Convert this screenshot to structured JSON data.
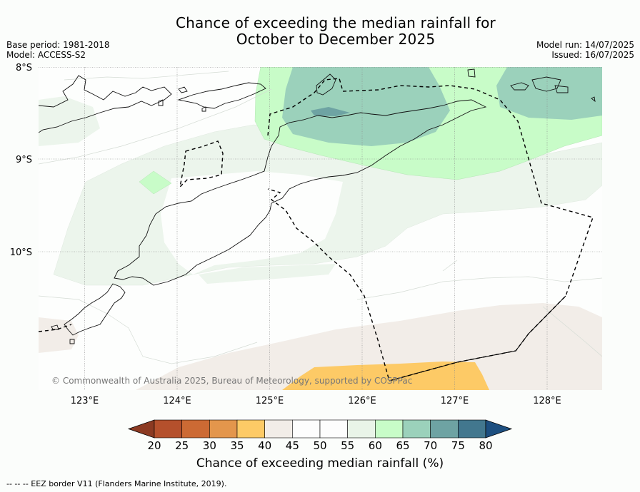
{
  "title": {
    "line1": "Chance of exceeding the median rainfall for",
    "line2": "October to December 2025"
  },
  "meta": {
    "base_period": "Base period: 1981-2018",
    "model": "Model: ACCESS-S2",
    "model_run": "Model run: 14/07/2025",
    "issued": "Issued: 16/07/2025"
  },
  "axes": {
    "lat_labels": [
      "8°S",
      "9°S",
      "10°S"
    ],
    "lat_values": [
      -8,
      -9,
      -10
    ],
    "lon_labels": [
      "123°E",
      "124°E",
      "125°E",
      "126°E",
      "127°E",
      "128°E"
    ],
    "lon_values": [
      123,
      124,
      125,
      126,
      127,
      128
    ],
    "lon_range": [
      122.5,
      128.6
    ],
    "lat_range": [
      -11.5,
      -8
    ]
  },
  "credit": "© Commonwealth of Australia 2025, Bureau of Meteorology, supported by COSPPac",
  "colorbar": {
    "title": "Chance of exceeding median rainfall (%)",
    "ticks": [
      "20",
      "25",
      "30",
      "35",
      "40",
      "45",
      "50",
      "55",
      "60",
      "65",
      "70",
      "75",
      "80"
    ],
    "colors": [
      "#8c3a22",
      "#b5502c",
      "#cc6a34",
      "#e3964c",
      "#fdca66",
      "#f2ede8",
      "#fdfdfd",
      "#fdfdfd",
      "#e9f4e8",
      "#c8fcc8",
      "#9bd1bb",
      "#6ea3a3",
      "#42778e",
      "#1d4f80"
    ]
  },
  "footnote": "--  --  -- EEZ border V11 (Flanders Marine Institute, 2019)."
}
